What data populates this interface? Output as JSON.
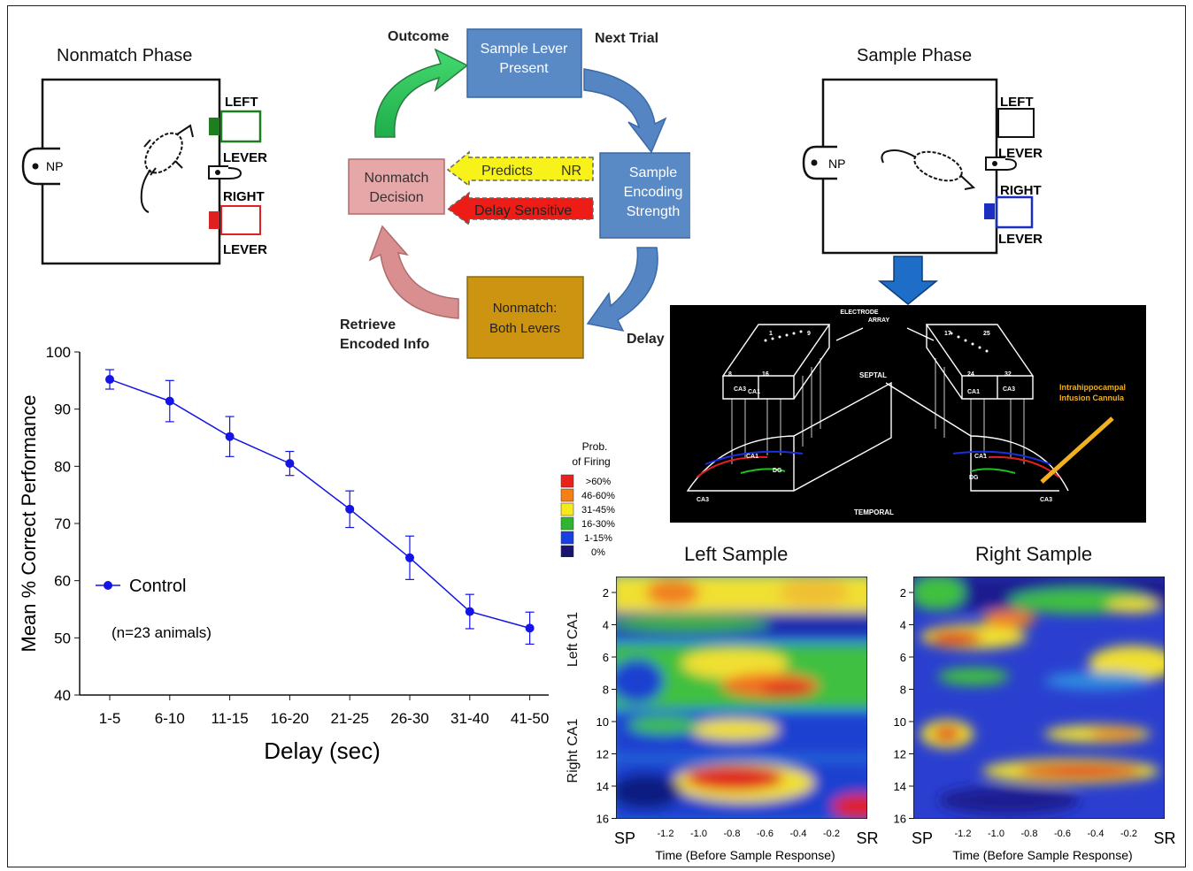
{
  "nonmatch_phase": {
    "title": "Nonmatch Phase",
    "np": "NP",
    "left": "LEFT",
    "lever1": "LEVER",
    "right": "RIGHT",
    "lever2": "LEVER",
    "left_color": "#1e7d1e",
    "right_color": "#e02020"
  },
  "sample_phase": {
    "title": "Sample Phase",
    "np": "NP",
    "left": "LEFT",
    "lever1": "LEVER",
    "right": "RIGHT",
    "lever2": "LEVER",
    "right_color": "#1a2fbf"
  },
  "cycle": {
    "outcome": "Outcome",
    "next_trial": "Next Trial",
    "delay": "Delay",
    "retrieve_line1": "Retrieve",
    "retrieve_line2": "Encoded Info",
    "sample_lever_l1": "Sample Lever",
    "sample_lever_l2": "Present",
    "sample_enc_l1": "Sample",
    "sample_enc_l2": "Encoding",
    "sample_enc_l3": "Strength",
    "nonmatch_both_l1": "Nonmatch:",
    "nonmatch_both_l2": "Both Levers",
    "nonmatch_dec_l1": "Nonmatch",
    "nonmatch_dec_l2": "Decision",
    "predicts": "Predicts",
    "nr": "NR",
    "delay_sensitive": "Delay Sensitive"
  },
  "array": {
    "electrode_l1": "ELECTRODE",
    "electrode_l2": "ARRAY",
    "septal": "SEPTAL",
    "temporal": "TEMPORAL",
    "cannula_l1": "Intrahippocampal",
    "cannula_l2": "Infusion Cannula",
    "l_top1": "1",
    "l_top2": "9",
    "l_bot1": "8",
    "l_bot2": "16",
    "r_top1": "17",
    "r_top2": "25",
    "r_bot1": "24",
    "r_bot2": "32",
    "ca3": "CA3",
    "ca1": "CA1",
    "dg": "DG"
  },
  "legend": {
    "title_l1": "Prob.",
    "title_l2": "of Firing",
    "items": [
      {
        "label": ">60%",
        "color": "#e8231b"
      },
      {
        "label": "46-60%",
        "color": "#f57f17"
      },
      {
        "label": "31-45%",
        "color": "#f5ea1b"
      },
      {
        "label": "16-30%",
        "color": "#2fb52f"
      },
      {
        "label": "1-15%",
        "color": "#1a3fe0"
      },
      {
        "label": "0%",
        "color": "#1a1470"
      }
    ]
  },
  "heatmaps": {
    "left_title": "Left Sample",
    "right_title": "Right Sample",
    "y_ticks": [
      "2",
      "4",
      "6",
      "8",
      "10",
      "12",
      "14",
      "16"
    ],
    "x_ticks": [
      "-1.2",
      "-1.0",
      "-0.8",
      "-0.6",
      "-0.4",
      "-0.2"
    ],
    "sp": "SP",
    "sr": "SR",
    "xlabel": "Time (Before Sample Response)",
    "ylabel_top": "Left CA1",
    "ylabel_bot": "Right CA1"
  },
  "chart_data": {
    "type": "line",
    "categories": [
      "1-5",
      "6-10",
      "11-15",
      "16-20",
      "21-25",
      "26-30",
      "31-40",
      "41-50"
    ],
    "series": [
      {
        "name": "Control",
        "values": [
          95.2,
          91.4,
          85.2,
          80.5,
          72.5,
          64.0,
          54.6,
          51.7
        ],
        "errors": [
          1.7,
          3.6,
          3.5,
          2.1,
          3.2,
          3.8,
          3.0,
          2.8
        ],
        "color": "#1414e6"
      }
    ],
    "ylim": [
      40,
      100
    ],
    "y_ticks": [
      "40",
      "50",
      "60",
      "70",
      "80",
      "90",
      "100"
    ],
    "xlabel": "Delay (sec)",
    "ylabel": "Mean % Correct Performance",
    "annotation": "(n=23 animals)",
    "legend_placement": "lower-left"
  }
}
